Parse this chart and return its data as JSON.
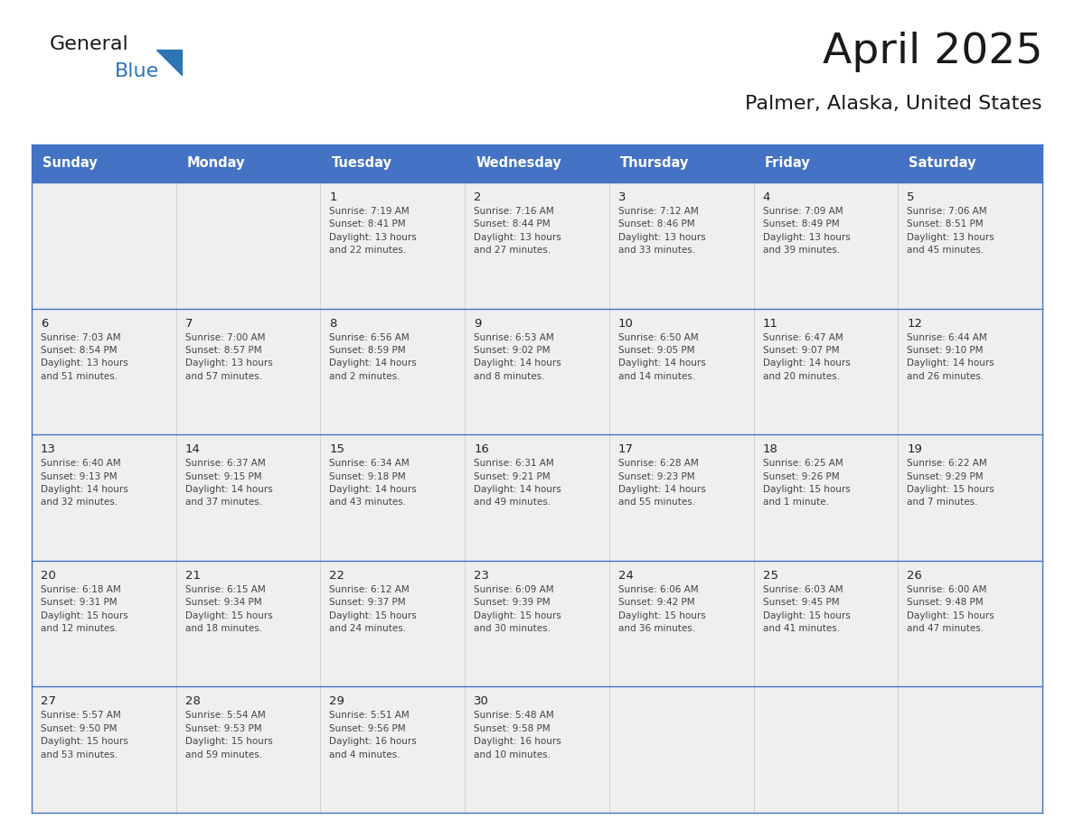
{
  "title": "April 2025",
  "subtitle": "Palmer, Alaska, United States",
  "header_bg": "#4472C4",
  "header_text_color": "#FFFFFF",
  "cell_bg": "#EFEFEF",
  "cell_bg_white": "#FFFFFF",
  "border_color": "#4472C4",
  "text_color": "#444444",
  "day_number_color": "#222222",
  "weekdays": [
    "Sunday",
    "Monday",
    "Tuesday",
    "Wednesday",
    "Thursday",
    "Friday",
    "Saturday"
  ],
  "calendar": [
    [
      {
        "day": "",
        "info": ""
      },
      {
        "day": "",
        "info": ""
      },
      {
        "day": "1",
        "info": "Sunrise: 7:19 AM\nSunset: 8:41 PM\nDaylight: 13 hours\nand 22 minutes."
      },
      {
        "day": "2",
        "info": "Sunrise: 7:16 AM\nSunset: 8:44 PM\nDaylight: 13 hours\nand 27 minutes."
      },
      {
        "day": "3",
        "info": "Sunrise: 7:12 AM\nSunset: 8:46 PM\nDaylight: 13 hours\nand 33 minutes."
      },
      {
        "day": "4",
        "info": "Sunrise: 7:09 AM\nSunset: 8:49 PM\nDaylight: 13 hours\nand 39 minutes."
      },
      {
        "day": "5",
        "info": "Sunrise: 7:06 AM\nSunset: 8:51 PM\nDaylight: 13 hours\nand 45 minutes."
      }
    ],
    [
      {
        "day": "6",
        "info": "Sunrise: 7:03 AM\nSunset: 8:54 PM\nDaylight: 13 hours\nand 51 minutes."
      },
      {
        "day": "7",
        "info": "Sunrise: 7:00 AM\nSunset: 8:57 PM\nDaylight: 13 hours\nand 57 minutes."
      },
      {
        "day": "8",
        "info": "Sunrise: 6:56 AM\nSunset: 8:59 PM\nDaylight: 14 hours\nand 2 minutes."
      },
      {
        "day": "9",
        "info": "Sunrise: 6:53 AM\nSunset: 9:02 PM\nDaylight: 14 hours\nand 8 minutes."
      },
      {
        "day": "10",
        "info": "Sunrise: 6:50 AM\nSunset: 9:05 PM\nDaylight: 14 hours\nand 14 minutes."
      },
      {
        "day": "11",
        "info": "Sunrise: 6:47 AM\nSunset: 9:07 PM\nDaylight: 14 hours\nand 20 minutes."
      },
      {
        "day": "12",
        "info": "Sunrise: 6:44 AM\nSunset: 9:10 PM\nDaylight: 14 hours\nand 26 minutes."
      }
    ],
    [
      {
        "day": "13",
        "info": "Sunrise: 6:40 AM\nSunset: 9:13 PM\nDaylight: 14 hours\nand 32 minutes."
      },
      {
        "day": "14",
        "info": "Sunrise: 6:37 AM\nSunset: 9:15 PM\nDaylight: 14 hours\nand 37 minutes."
      },
      {
        "day": "15",
        "info": "Sunrise: 6:34 AM\nSunset: 9:18 PM\nDaylight: 14 hours\nand 43 minutes."
      },
      {
        "day": "16",
        "info": "Sunrise: 6:31 AM\nSunset: 9:21 PM\nDaylight: 14 hours\nand 49 minutes."
      },
      {
        "day": "17",
        "info": "Sunrise: 6:28 AM\nSunset: 9:23 PM\nDaylight: 14 hours\nand 55 minutes."
      },
      {
        "day": "18",
        "info": "Sunrise: 6:25 AM\nSunset: 9:26 PM\nDaylight: 15 hours\nand 1 minute."
      },
      {
        "day": "19",
        "info": "Sunrise: 6:22 AM\nSunset: 9:29 PM\nDaylight: 15 hours\nand 7 minutes."
      }
    ],
    [
      {
        "day": "20",
        "info": "Sunrise: 6:18 AM\nSunset: 9:31 PM\nDaylight: 15 hours\nand 12 minutes."
      },
      {
        "day": "21",
        "info": "Sunrise: 6:15 AM\nSunset: 9:34 PM\nDaylight: 15 hours\nand 18 minutes."
      },
      {
        "day": "22",
        "info": "Sunrise: 6:12 AM\nSunset: 9:37 PM\nDaylight: 15 hours\nand 24 minutes."
      },
      {
        "day": "23",
        "info": "Sunrise: 6:09 AM\nSunset: 9:39 PM\nDaylight: 15 hours\nand 30 minutes."
      },
      {
        "day": "24",
        "info": "Sunrise: 6:06 AM\nSunset: 9:42 PM\nDaylight: 15 hours\nand 36 minutes."
      },
      {
        "day": "25",
        "info": "Sunrise: 6:03 AM\nSunset: 9:45 PM\nDaylight: 15 hours\nand 41 minutes."
      },
      {
        "day": "26",
        "info": "Sunrise: 6:00 AM\nSunset: 9:48 PM\nDaylight: 15 hours\nand 47 minutes."
      }
    ],
    [
      {
        "day": "27",
        "info": "Sunrise: 5:57 AM\nSunset: 9:50 PM\nDaylight: 15 hours\nand 53 minutes."
      },
      {
        "day": "28",
        "info": "Sunrise: 5:54 AM\nSunset: 9:53 PM\nDaylight: 15 hours\nand 59 minutes."
      },
      {
        "day": "29",
        "info": "Sunrise: 5:51 AM\nSunset: 9:56 PM\nDaylight: 16 hours\nand 4 minutes."
      },
      {
        "day": "30",
        "info": "Sunrise: 5:48 AM\nSunset: 9:58 PM\nDaylight: 16 hours\nand 10 minutes."
      },
      {
        "day": "",
        "info": ""
      },
      {
        "day": "",
        "info": ""
      },
      {
        "day": "",
        "info": ""
      }
    ]
  ],
  "logo_general_color": "#1a1a1a",
  "logo_blue_color": "#2E75B6",
  "logo_triangle_color": "#2E75B6"
}
